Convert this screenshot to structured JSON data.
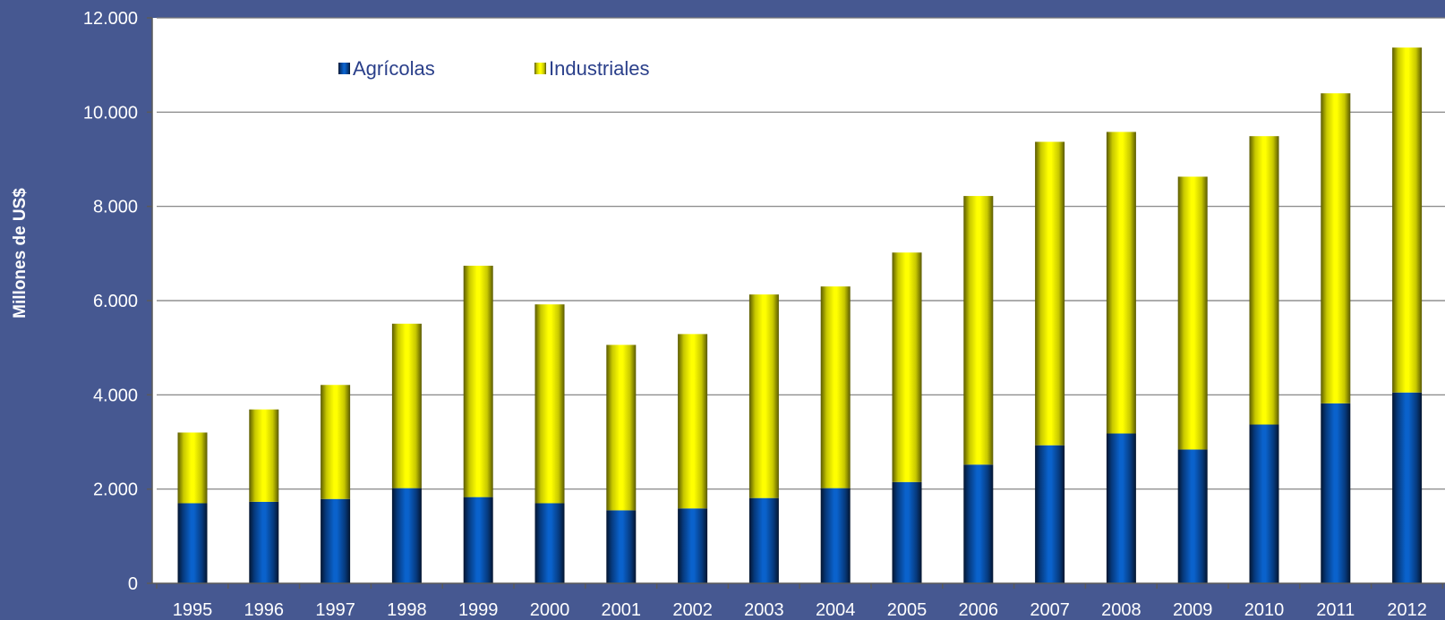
{
  "chart_data": {
    "type": "bar",
    "stacked": true,
    "title": "",
    "xlabel": "",
    "ylabel": "Millones de US$",
    "ylim": [
      0,
      12000
    ],
    "yticks": [
      0,
      2000,
      4000,
      6000,
      8000,
      10000,
      12000
    ],
    "ytick_labels": [
      "0",
      "2.000",
      "4.000",
      "6.000",
      "8.000",
      "10.000",
      "12.000"
    ],
    "grid": true,
    "legend_position": "top-left",
    "categories": [
      "1995",
      "1996",
      "1997",
      "1998",
      "1999",
      "2000",
      "2001",
      "2002",
      "2003",
      "2004",
      "2005",
      "2006",
      "2007",
      "2008",
      "2009",
      "2010",
      "2011",
      "2012"
    ],
    "series": [
      {
        "name": "Agrícolas",
        "color": "#0a5fc4",
        "values": [
          1700,
          1730,
          1790,
          2020,
          1830,
          1700,
          1550,
          1590,
          1810,
          2020,
          2150,
          2520,
          2930,
          3180,
          2840,
          3370,
          3820,
          4050
        ]
      },
      {
        "name": "Industriales",
        "color": "#ffff00",
        "values": [
          1500,
          1960,
          2420,
          3490,
          4910,
          4220,
          3510,
          3700,
          4320,
          4280,
          4870,
          5700,
          6440,
          6400,
          5790,
          6120,
          6580,
          7320
        ]
      }
    ]
  }
}
